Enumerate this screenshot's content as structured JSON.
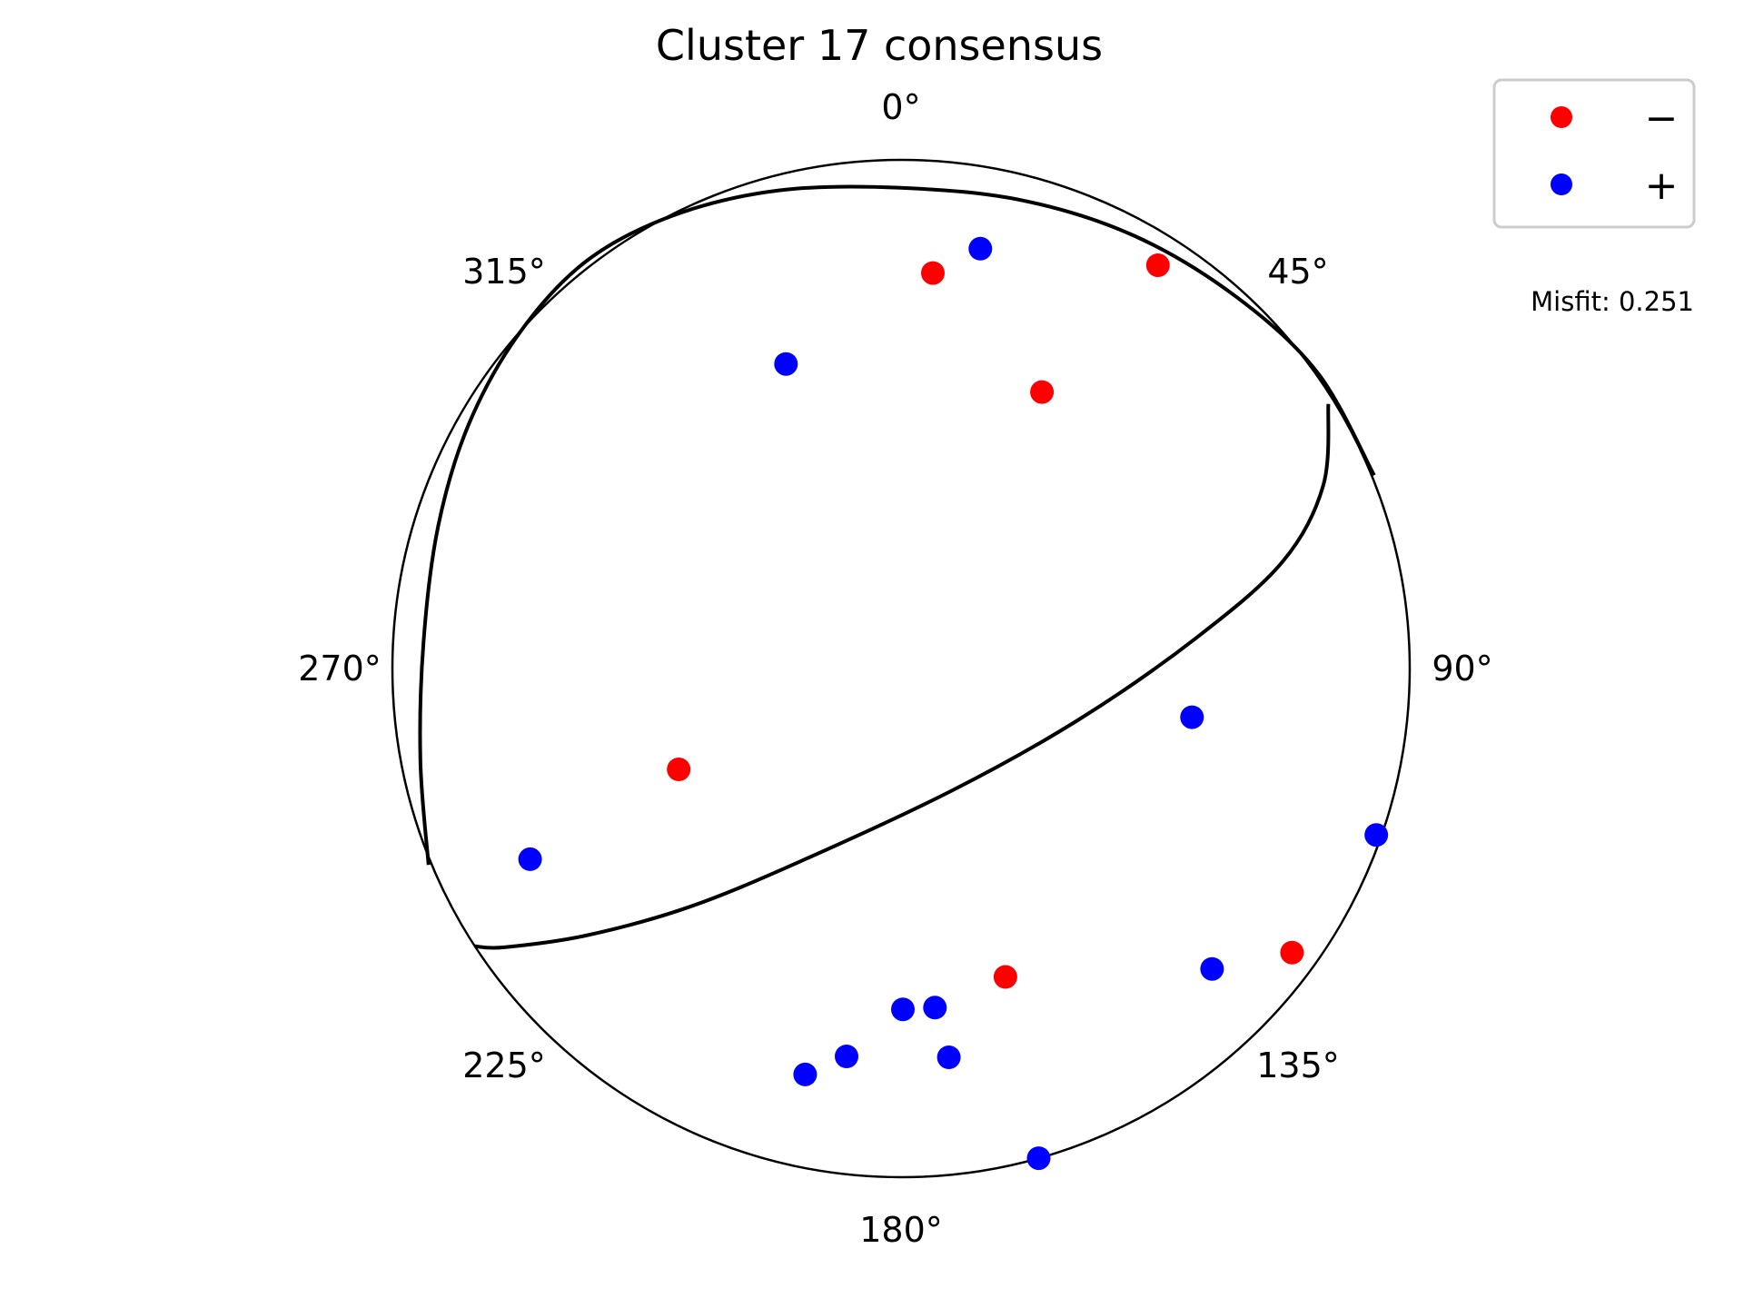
{
  "chart_data": {
    "type": "scatter",
    "title": "Cluster 17 consensus",
    "azimuth_labels": [
      {
        "angle": 0,
        "text": "0°"
      },
      {
        "angle": 45,
        "text": "45°"
      },
      {
        "angle": 90,
        "text": "90°"
      },
      {
        "angle": 135,
        "text": "135°"
      },
      {
        "angle": 180,
        "text": "180°"
      },
      {
        "angle": 225,
        "text": "225°"
      },
      {
        "angle": 270,
        "text": "270°"
      },
      {
        "angle": 315,
        "text": "315°"
      }
    ],
    "legend": {
      "placement": "top-right",
      "entries": [
        {
          "label": "−",
          "color": "#ff0000",
          "series": "negative"
        },
        {
          "label": "+",
          "color": "#0000ff",
          "series": "positive"
        }
      ]
    },
    "misfit_label": "Misfit: 0.251",
    "colors": {
      "negative": "#ff0000",
      "positive": "#0000ff",
      "outline": "#000000"
    },
    "nodal_planes": [
      {
        "name": "plane-1",
        "points": [
          [
            -0.929,
            -0.386
          ],
          [
            -0.945,
            -0.18
          ],
          [
            -0.939,
            0.05
          ],
          [
            -0.91,
            0.28
          ],
          [
            -0.85,
            0.48
          ],
          [
            -0.75,
            0.66
          ],
          [
            -0.62,
            0.8
          ],
          [
            -0.45,
            0.89
          ],
          [
            -0.24,
            0.94
          ],
          [
            0.0,
            0.945
          ],
          [
            0.24,
            0.92
          ],
          [
            0.46,
            0.85
          ],
          [
            0.66,
            0.73
          ],
          [
            0.82,
            0.58
          ],
          [
            0.93,
            0.38
          ]
        ]
      },
      {
        "name": "plane-2",
        "points": [
          [
            -0.838,
            -0.546
          ],
          [
            -0.78,
            -0.548
          ],
          [
            -0.62,
            -0.525
          ],
          [
            -0.42,
            -0.47
          ],
          [
            -0.2,
            -0.38
          ],
          [
            0.1,
            -0.24
          ],
          [
            0.35,
            -0.1
          ],
          [
            0.58,
            0.06
          ],
          [
            0.75,
            0.21
          ],
          [
            0.83,
            0.36
          ],
          [
            0.84,
            0.52
          ]
        ]
      }
    ],
    "series": [
      {
        "name": "negative",
        "points": [
          {
            "azimuth": 4.6,
            "radius": 0.78
          },
          {
            "azimuth": 32.5,
            "radius": 0.94
          },
          {
            "azimuth": 27.0,
            "radius": 0.61
          },
          {
            "azimuth": 245.6,
            "radius": 0.48
          },
          {
            "azimuth": 126.0,
            "radius": 0.95
          },
          {
            "azimuth": 161.3,
            "radius": 0.64
          }
        ]
      },
      {
        "name": "positive",
        "points": [
          {
            "azimuth": 10.7,
            "radius": 0.84
          },
          {
            "azimuth": 339.3,
            "radius": 0.64
          },
          {
            "azimuth": 99.5,
            "radius": 0.58
          },
          {
            "azimuth": 109.3,
            "radius": 0.99
          },
          {
            "azimuth": 242.8,
            "radius": 0.82
          },
          {
            "azimuth": 134.0,
            "radius": 0.85
          },
          {
            "azimuth": 179.7,
            "radius": 0.67
          },
          {
            "azimuth": 174.3,
            "radius": 0.67
          },
          {
            "azimuth": 173.0,
            "radius": 0.77
          },
          {
            "azimuth": 188.0,
            "radius": 0.77
          },
          {
            "azimuth": 193.3,
            "radius": 0.82
          },
          {
            "azimuth": 164.3,
            "radius": 1.0
          }
        ]
      }
    ]
  }
}
